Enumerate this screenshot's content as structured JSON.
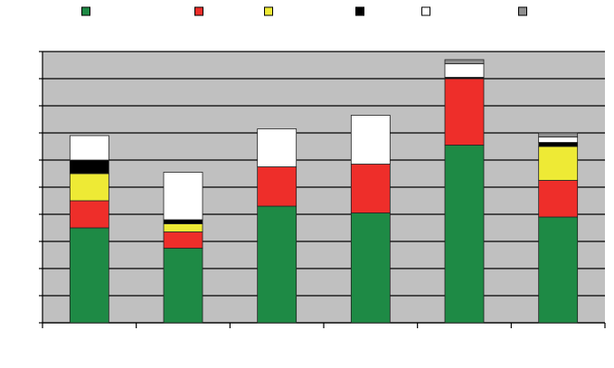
{
  "chart_data": {
    "type": "stacked_bar",
    "categories": [
      null,
      null,
      null,
      null,
      null,
      null
    ],
    "series": [
      {
        "color": "#1e8a45",
        "values": [
          3.5,
          2.75,
          4.3,
          4.05,
          6.55,
          3.9
        ]
      },
      {
        "color": "#ee2e2a",
        "values": [
          1.0,
          0.6,
          1.45,
          1.8,
          2.45,
          1.35
        ]
      },
      {
        "color": "#eeea35",
        "values": [
          1.0,
          0.3,
          0,
          0,
          0,
          1.25
        ]
      },
      {
        "color": "#000000",
        "values": [
          0.5,
          0.15,
          0,
          0,
          0.05,
          0.15
        ]
      },
      {
        "color": "#ffffff",
        "values": [
          0.9,
          1.75,
          1.4,
          1.8,
          0.5,
          0.2
        ]
      },
      {
        "color": "#8f8f8f",
        "values": [
          0,
          0,
          0,
          0,
          0.15,
          0.15
        ]
      }
    ],
    "ylim": [
      0,
      10
    ],
    "yticks": [
      0,
      1,
      2,
      3,
      4,
      5,
      6,
      7,
      8,
      9,
      10
    ],
    "grid": true,
    "legend": "top"
  }
}
